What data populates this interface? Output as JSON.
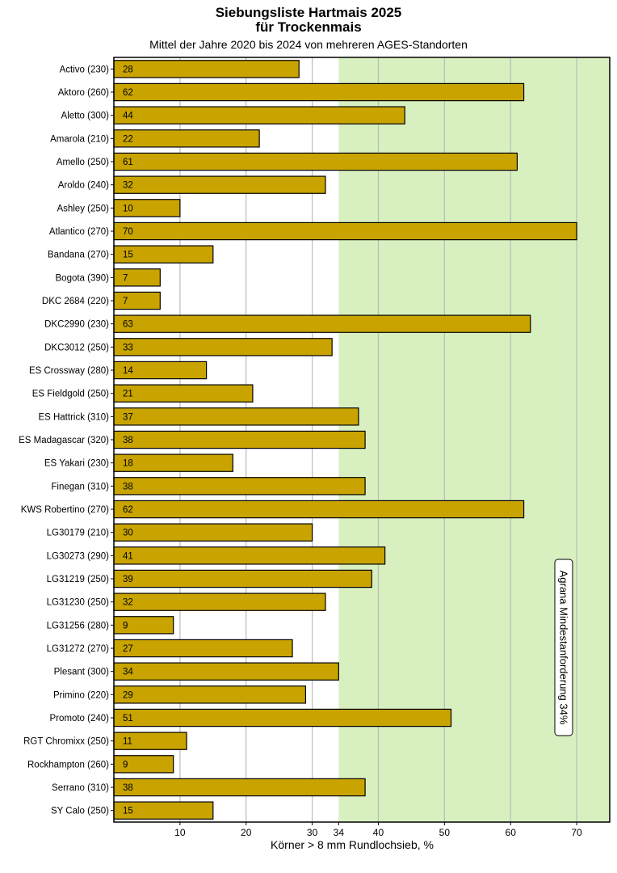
{
  "chart_data": {
    "type": "bar",
    "orientation": "horizontal",
    "title": "Siebungsliste Hartmais 2025",
    "title_line2": "für Trockenmais",
    "subtitle": "Mittel der Jahre 2020 bis 2024 von mehreren AGES-Standorten",
    "xlabel": "Körner > 8 mm Rundlochsieb, %",
    "xlim": [
      0,
      75
    ],
    "xticks": [
      10,
      20,
      30,
      34,
      40,
      50,
      60,
      70
    ],
    "grid": "vertical",
    "threshold": {
      "value": 34,
      "label": "Agrana Mindestanforderung 34%"
    },
    "categories": [
      "Activo (230)",
      "Aktoro (260)",
      "Aletto (300)",
      "Amarola (210)",
      "Amello (250)",
      "Aroldo (240)",
      "Ashley (250)",
      "Atlantico (270)",
      "Bandana (270)",
      "Bogota (390)",
      "DKC 2684 (220)",
      "DKC2990 (230)",
      "DKC3012 (250)",
      "ES Crossway (280)",
      "ES Fieldgold (250)",
      "ES Hattrick (310)",
      "ES Madagascar (320)",
      "ES Yakari (230)",
      "Finegan (310)",
      "KWS Robertino (270)",
      "LG30179 (210)",
      "LG30273 (290)",
      "LG31219 (250)",
      "LG31230 (250)",
      "LG31256 (280)",
      "LG31272 (270)",
      "Plesant (300)",
      "Primino (220)",
      "Promoto (240)",
      "RGT Chromixx (250)",
      "Rockhampton (260)",
      "Serrano (310)",
      "SY Calo (250)"
    ],
    "values": [
      28,
      62,
      44,
      22,
      61,
      32,
      10,
      70,
      15,
      7,
      7,
      63,
      33,
      14,
      21,
      37,
      38,
      18,
      38,
      62,
      30,
      41,
      39,
      32,
      9,
      27,
      34,
      29,
      51,
      11,
      9,
      38,
      15
    ],
    "colors": {
      "bar": "#c9a400",
      "bar_edge": "#000000",
      "threshold_region": "#d8f0c0",
      "grid": "#bbbbbb"
    }
  }
}
